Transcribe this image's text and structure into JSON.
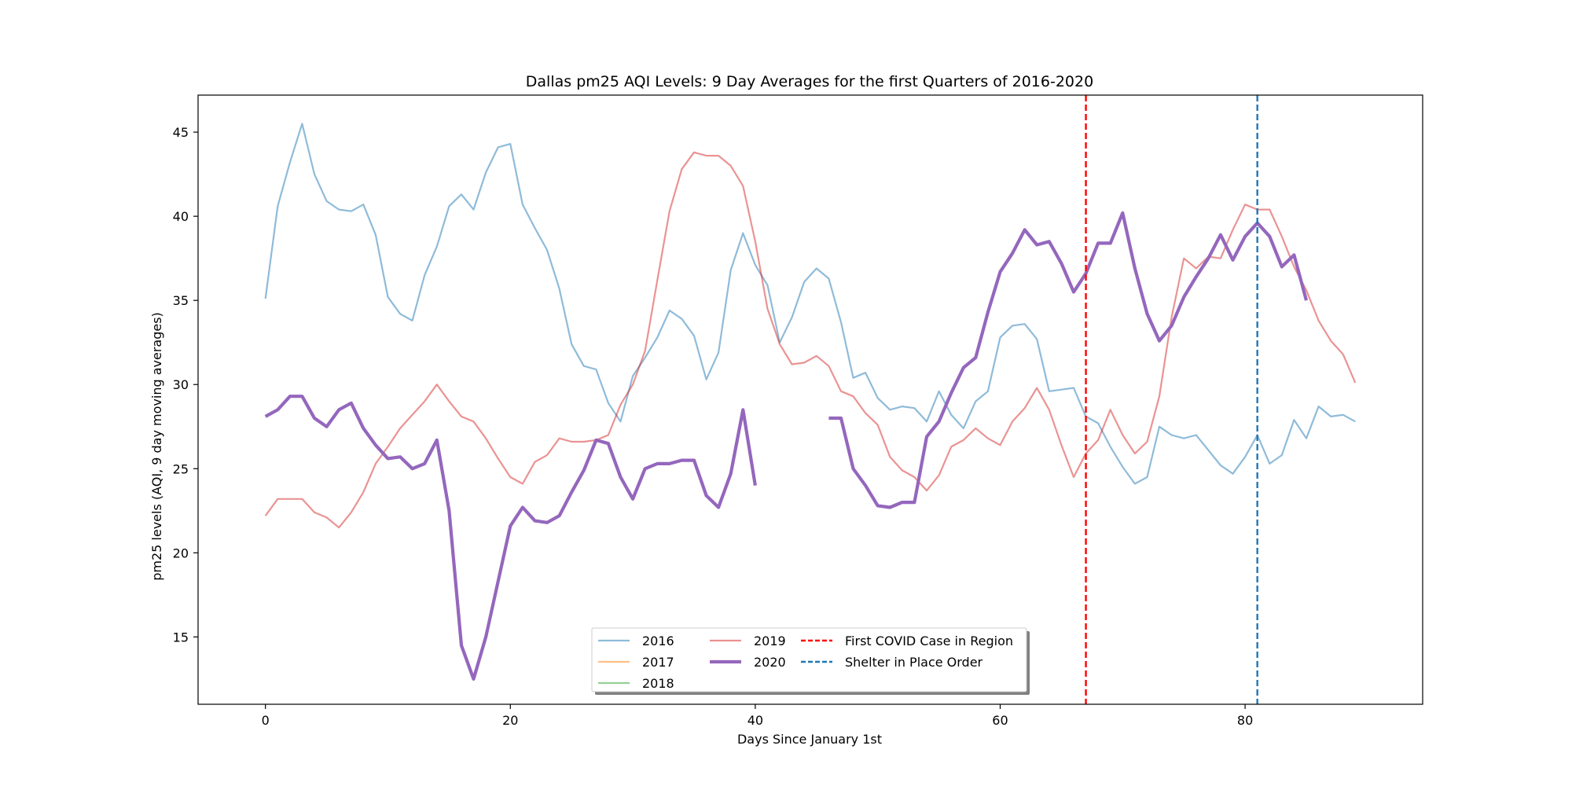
{
  "chart_data": {
    "type": "line",
    "title": "Dallas pm25 AQI Levels: 9 Day Averages for the first Quarters of 2016-2020",
    "xlabel": "Days Since January 1st",
    "ylabel": "pm25 levels (AQI, 9 day moving averages)",
    "xlim": [
      -5.5,
      94.5
    ],
    "ylim": [
      11.0,
      47.2
    ],
    "xticks": [
      0,
      20,
      40,
      60,
      80
    ],
    "yticks": [
      15,
      20,
      25,
      30,
      35,
      40,
      45
    ],
    "grid": false,
    "legend_position": "lower center",
    "series": [
      {
        "name": "2016",
        "color": "#1f77b4",
        "opacity": 0.5,
        "width": "thin",
        "x": [
          0,
          1,
          2,
          3,
          4,
          5,
          6,
          7,
          8,
          9,
          10,
          11,
          12,
          13,
          14,
          15,
          16,
          17,
          18,
          19,
          20,
          21,
          22,
          23,
          24,
          25,
          26,
          27,
          28,
          29,
          30,
          31,
          32,
          33,
          34,
          35,
          36,
          37,
          38,
          39,
          40,
          41,
          42,
          43,
          44,
          45,
          46,
          47,
          48,
          49,
          50,
          51,
          52,
          53,
          54,
          55,
          56,
          57,
          58,
          59,
          60,
          61,
          62,
          63,
          64,
          65,
          66,
          67,
          68,
          69,
          70,
          71,
          72,
          73,
          74,
          75,
          76,
          77,
          78,
          79,
          80,
          81,
          82,
          83,
          84,
          85,
          86,
          87,
          88,
          89
        ],
        "y": [
          35.1,
          40.6,
          43.2,
          45.5,
          42.5,
          40.9,
          40.4,
          40.3,
          40.7,
          38.9,
          35.2,
          34.2,
          33.8,
          36.5,
          38.2,
          40.6,
          41.3,
          40.4,
          42.6,
          44.1,
          44.3,
          40.7,
          39.3,
          38.0,
          35.7,
          32.4,
          31.1,
          30.9,
          28.9,
          27.8,
          30.5,
          31.6,
          32.8,
          34.4,
          33.9,
          32.9,
          30.3,
          31.9,
          36.8,
          39.0,
          37.1,
          35.9,
          32.5,
          34.0,
          36.1,
          36.9,
          36.3,
          33.7,
          30.4,
          30.7,
          29.2,
          28.5,
          28.7,
          28.6,
          27.8,
          29.6,
          28.2,
          27.4,
          29.0,
          29.6,
          32.8,
          33.5,
          33.6,
          32.7,
          29.6,
          29.7,
          29.8,
          28.1,
          27.7,
          26.3,
          25.1,
          24.1,
          24.5,
          27.5,
          27.0,
          26.8,
          27.0,
          26.1,
          25.2,
          24.7,
          25.7,
          27.0,
          25.3,
          25.8,
          27.9,
          26.8,
          28.7,
          28.1,
          28.2,
          27.8
        ]
      },
      {
        "name": "2017",
        "color": "#ff7f0e",
        "opacity": 0.5,
        "width": "thin",
        "x": [],
        "y": []
      },
      {
        "name": "2018",
        "color": "#2ca02c",
        "opacity": 0.5,
        "width": "thin",
        "x": [],
        "y": []
      },
      {
        "name": "2019",
        "color": "#d62728",
        "opacity": 0.5,
        "width": "thin",
        "x": [
          0,
          1,
          2,
          3,
          4,
          5,
          6,
          7,
          8,
          9,
          10,
          11,
          12,
          13,
          14,
          15,
          16,
          17,
          18,
          19,
          20,
          21,
          22,
          23,
          24,
          25,
          26,
          27,
          28,
          29,
          30,
          31,
          32,
          33,
          34,
          35,
          36,
          37,
          38,
          39,
          40,
          41,
          42,
          43,
          44,
          45,
          46,
          47,
          48,
          49,
          50,
          51,
          52,
          53,
          54,
          55,
          56,
          57,
          58,
          59,
          60,
          61,
          62,
          63,
          64,
          65,
          66,
          67,
          68,
          69,
          70,
          71,
          72,
          73,
          74,
          75,
          76,
          77,
          78,
          79,
          80,
          81,
          82,
          83,
          84,
          85,
          86,
          87,
          88,
          89
        ],
        "y": [
          22.2,
          23.2,
          23.2,
          23.2,
          22.4,
          22.1,
          21.5,
          22.4,
          23.6,
          25.3,
          26.3,
          27.4,
          28.2,
          29.0,
          30.0,
          29.0,
          28.1,
          27.8,
          26.8,
          25.6,
          24.5,
          24.1,
          25.4,
          25.8,
          26.8,
          26.6,
          26.6,
          26.7,
          27.0,
          28.8,
          30.0,
          32.0,
          36.2,
          40.3,
          42.8,
          43.8,
          43.6,
          43.6,
          43.0,
          41.8,
          38.5,
          34.5,
          32.4,
          31.2,
          31.3,
          31.7,
          31.1,
          29.6,
          29.3,
          28.3,
          27.6,
          25.7,
          24.9,
          24.5,
          23.7,
          24.6,
          26.3,
          26.7,
          27.4,
          26.8,
          26.4,
          27.8,
          28.6,
          29.8,
          28.5,
          26.4,
          24.5,
          25.9,
          26.7,
          28.5,
          27.0,
          25.9,
          26.6,
          29.3,
          34.0,
          37.5,
          36.9,
          37.6,
          37.5,
          39.2,
          40.7,
          40.4,
          40.4,
          38.8,
          37.0,
          35.6,
          33.8,
          32.6,
          31.8,
          30.1
        ]
      },
      {
        "name": "2020",
        "color": "#9467bd",
        "opacity": 1.0,
        "width": "thick",
        "x": [
          0,
          1,
          2,
          3,
          4,
          5,
          6,
          7,
          8,
          9,
          10,
          11,
          12,
          13,
          14,
          15,
          16,
          17,
          18,
          19,
          20,
          21,
          22,
          23,
          24,
          25,
          26,
          27,
          28,
          29,
          30,
          31,
          32,
          33,
          34,
          35,
          36,
          37,
          38,
          39,
          40,
          41,
          42,
          43,
          44,
          45,
          46,
          47,
          48,
          49,
          50,
          51,
          52,
          53,
          54,
          55,
          56,
          57,
          58,
          59,
          60,
          61,
          62,
          63,
          64,
          65,
          66,
          67,
          68,
          69,
          70,
          71,
          72,
          73,
          74,
          75,
          76,
          77,
          78,
          79,
          80,
          81,
          82,
          83,
          84,
          85
        ],
        "y": [
          28.1,
          28.5,
          29.3,
          29.3,
          28.0,
          27.5,
          28.5,
          28.9,
          27.4,
          26.4,
          25.6,
          25.7,
          25.0,
          25.3,
          26.7,
          22.5,
          14.5,
          12.5,
          15.0,
          18.3,
          21.6,
          22.7,
          21.9,
          21.8,
          22.2,
          23.6,
          24.9,
          26.7,
          26.5,
          24.5,
          23.2,
          25.0,
          25.3,
          25.3,
          25.5,
          25.5,
          23.4,
          22.7,
          24.7,
          28.5,
          24.0,
          null,
          null,
          null,
          null,
          null,
          28.0,
          28.0,
          25.0,
          24.0,
          22.8,
          22.7,
          23.0,
          23.0,
          26.9,
          27.8,
          29.5,
          31.0,
          31.6,
          34.3,
          36.7,
          37.8,
          39.2,
          38.3,
          38.5,
          37.2,
          35.5,
          36.6,
          38.4,
          38.4,
          40.2,
          36.9,
          34.2,
          32.6,
          33.5,
          35.2,
          36.4,
          37.5,
          38.9,
          37.4,
          38.8,
          39.6,
          38.8,
          37.0,
          37.7,
          35.0
        ]
      }
    ],
    "vlines": [
      {
        "name": "First COVID Case in Region",
        "x": 67,
        "color": "#ff0000",
        "style": "dashed"
      },
      {
        "name": "Shelter in Place Order",
        "x": 81,
        "color": "#1f77b4",
        "style": "dashed"
      }
    ]
  }
}
